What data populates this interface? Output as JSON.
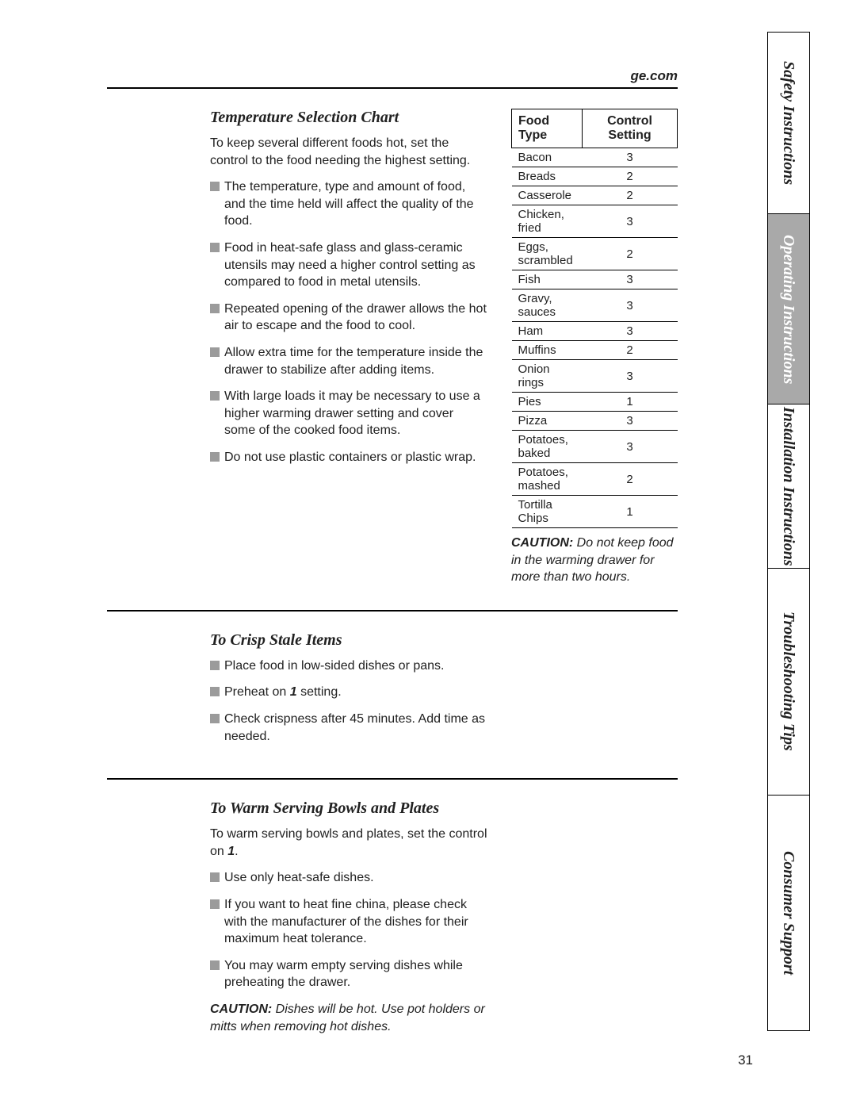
{
  "header": {
    "url": "ge.com"
  },
  "page_number": "31",
  "colors": {
    "text": "#212121",
    "bullet": "#9b9b9b",
    "rule": "#000000",
    "tab_active_bg": "#a9a9a9",
    "tab_active_fg": "#ffffff",
    "background": "#ffffff"
  },
  "typography": {
    "body_font": "Arial, Helvetica, sans-serif",
    "heading_font": "Georgia, 'Times New Roman', serif",
    "body_size_pt": 12,
    "heading_size_pt": 15,
    "tab_size_pt": 15
  },
  "section1": {
    "title": "Temperature Selection Chart",
    "intro": "To keep several different foods hot, set the control to the food needing the highest setting.",
    "bullets": [
      "The temperature, type and amount of food, and the time held will affect the quality of the food.",
      "Food in heat-safe glass and glass-ceramic utensils may need a higher control setting as compared to food in metal utensils.",
      "Repeated opening of the drawer allows the hot air to escape and the food to cool.",
      "Allow extra time for the temperature inside the drawer to stabilize after adding items.",
      "With large loads it may be necessary to use a higher warming drawer setting and cover some of the cooked food items.",
      "Do not use plastic containers or plastic wrap."
    ],
    "table": {
      "headers": {
        "col1": "Food Type",
        "col2": "Control Setting"
      },
      "rows": [
        {
          "food": "Bacon",
          "setting": "3"
        },
        {
          "food": "Breads",
          "setting": "2"
        },
        {
          "food": "Casserole",
          "setting": "2"
        },
        {
          "food": "Chicken, fried",
          "setting": "3"
        },
        {
          "food": "Eggs, scrambled",
          "setting": "2"
        },
        {
          "food": "Fish",
          "setting": "3"
        },
        {
          "food": "Gravy, sauces",
          "setting": "3"
        },
        {
          "food": "Ham",
          "setting": "3"
        },
        {
          "food": "Muffins",
          "setting": "2"
        },
        {
          "food": "Onion rings",
          "setting": "3"
        },
        {
          "food": "Pies",
          "setting": "1"
        },
        {
          "food": "Pizza",
          "setting": "3"
        },
        {
          "food": "Potatoes, baked",
          "setting": "3"
        },
        {
          "food": "Potatoes, mashed",
          "setting": "2"
        },
        {
          "food": "Tortilla Chips",
          "setting": "1"
        }
      ]
    },
    "caution_label": "CAUTION:",
    "caution_text": " Do not keep food in the warming drawer for more than two hours."
  },
  "section2": {
    "title": "To Crisp Stale Items",
    "bullets_pre": [
      "Place food in low-sided dishes or pans."
    ],
    "preheat_pre": "Preheat on ",
    "preheat_bold": "1",
    "preheat_post": " setting.",
    "bullets_post": [
      "Check crispness after 45 minutes. Add time as needed."
    ]
  },
  "section3": {
    "title": "To Warm Serving Bowls and Plates",
    "intro_pre": "To warm serving bowls and plates, set the control on ",
    "intro_bold": "1",
    "intro_post": ".",
    "bullets": [
      "Use only heat-safe dishes.",
      "If you want to heat fine china, please check with the manufacturer of the dishes for their maximum heat tolerance.",
      "You may warm empty serving dishes while preheating the drawer."
    ],
    "caution_label": "CAUTION:",
    "caution_text": " Dishes will be hot. Use pot holders or mitts when removing hot dishes."
  },
  "tabs": [
    {
      "label": "Safety Instructions",
      "active": false
    },
    {
      "label": "Operating Instructions",
      "active": true
    },
    {
      "label": "Installation\nInstructions",
      "active": false
    },
    {
      "label": "Troubleshooting Tips",
      "active": false
    },
    {
      "label": "Consumer Support",
      "active": false
    }
  ]
}
